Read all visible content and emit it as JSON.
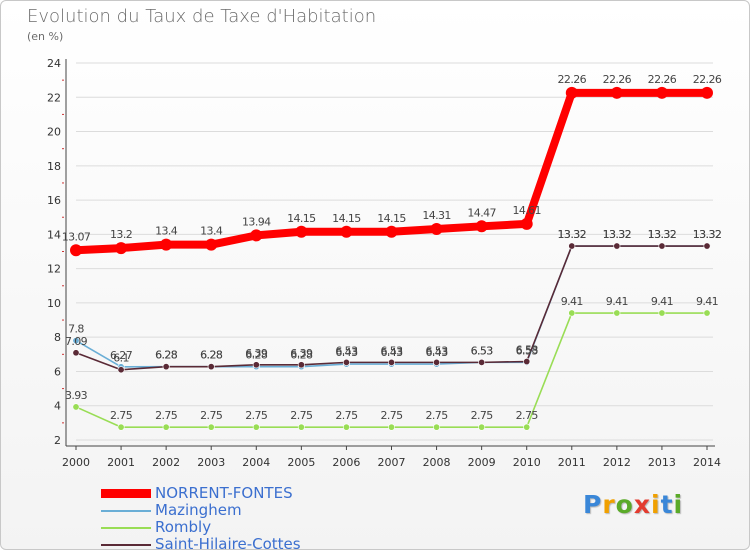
{
  "title": "Evolution du Taux de Taxe d'Habitation",
  "subtitle": "(en %)",
  "logo": {
    "letters": [
      "P",
      "r",
      "o",
      "x",
      "i",
      "t",
      "i"
    ],
    "colors": [
      "#3a87d8",
      "#f0a000",
      "#5aaa28",
      "#e33b2f",
      "#f0a000",
      "#3a87d8",
      "#5aaa28"
    ]
  },
  "chart_data": {
    "type": "line",
    "x": [
      2000,
      2001,
      2002,
      2003,
      2004,
      2005,
      2006,
      2007,
      2008,
      2009,
      2010,
      2011,
      2012,
      2013,
      2014
    ],
    "ylim": [
      2,
      24
    ],
    "yticks": [
      2,
      4,
      6,
      8,
      10,
      12,
      14,
      16,
      18,
      20,
      22,
      24
    ],
    "grid": "horizontal",
    "legend_position": "bottom-left",
    "series": [
      {
        "name": "NORRENT-FONTES",
        "color": "#ff0000",
        "values": [
          13.07,
          13.2,
          13.4,
          13.4,
          13.94,
          14.15,
          14.15,
          14.15,
          14.31,
          14.47,
          14.61,
          22.26,
          22.26,
          22.26,
          22.26
        ]
      },
      {
        "name": "Mazinghem",
        "color": "#6aaed6",
        "values": [
          7.8,
          6.27,
          6.28,
          6.28,
          6.28,
          6.28,
          6.43,
          6.43,
          6.43,
          6.53,
          6.53,
          13.32,
          13.32,
          13.32,
          13.32
        ]
      },
      {
        "name": "Rombly",
        "color": "#99dd55",
        "values": [
          3.93,
          2.75,
          2.75,
          2.75,
          2.75,
          2.75,
          2.75,
          2.75,
          2.75,
          2.75,
          2.75,
          9.41,
          9.41,
          9.41,
          9.41
        ]
      },
      {
        "name": "Saint-Hilaire-Cottes",
        "color": "#5a2a36",
        "values": [
          7.09,
          6.1,
          6.28,
          6.28,
          6.39,
          6.39,
          6.53,
          6.53,
          6.53,
          6.53,
          6.58,
          13.32,
          13.32,
          13.32,
          13.32
        ]
      }
    ]
  }
}
